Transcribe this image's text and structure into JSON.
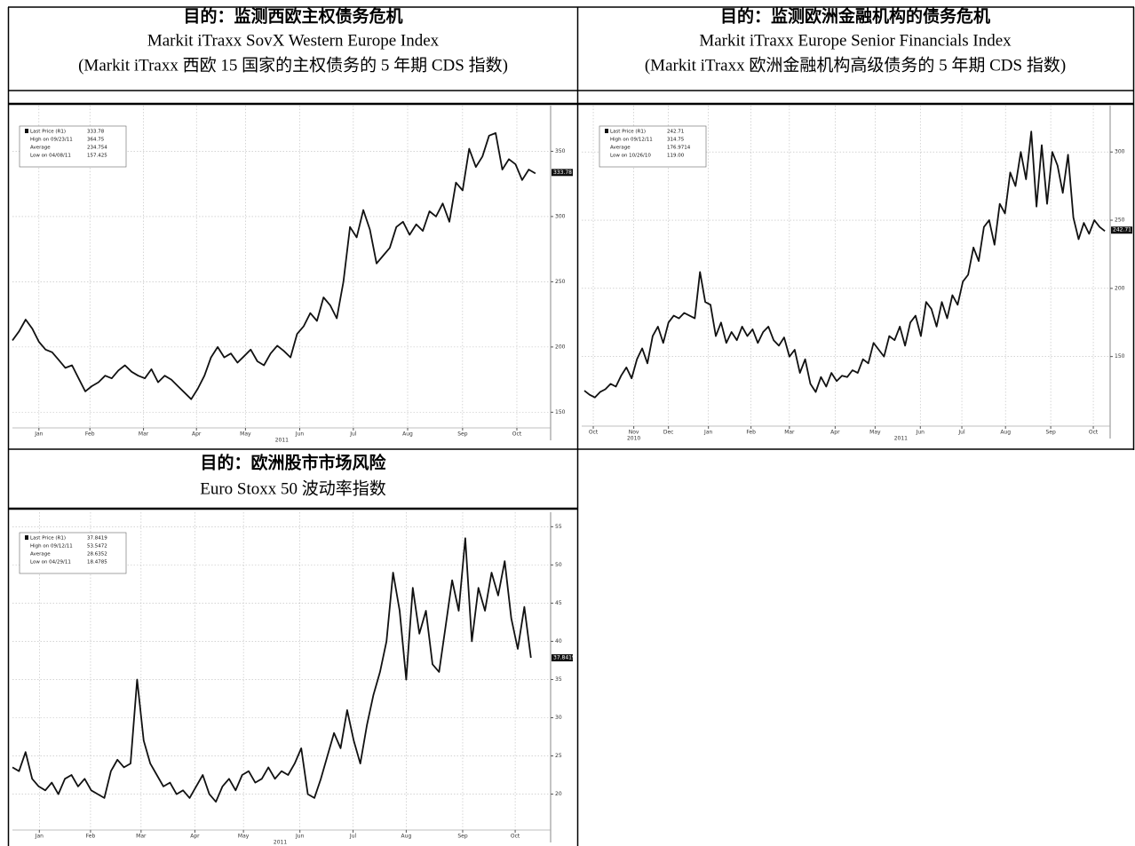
{
  "chart_data": [
    {
      "type": "line",
      "title": "目的：监测西欧主权债务危机",
      "subtitle": "Markit iTraxx SovX Western Europe Index",
      "caption": "(Markit iTraxx 西欧 15 国家的主权债务的 5 年期 CDS 指数)",
      "color": "#111111",
      "values": [
        205,
        212,
        221,
        214,
        204,
        198,
        196,
        190,
        184,
        186,
        176,
        166,
        170,
        173,
        178,
        176,
        182,
        186,
        181,
        178,
        176,
        183,
        173,
        178,
        175,
        170,
        165,
        160,
        168,
        178,
        192,
        200,
        192,
        195,
        188,
        193,
        198,
        189,
        186,
        195,
        201,
        197,
        192,
        210,
        216,
        226,
        220,
        238,
        232,
        222,
        250,
        292,
        284,
        305,
        290,
        264,
        270,
        276,
        292,
        296,
        286,
        294,
        289,
        304,
        300,
        310,
        296,
        326,
        320,
        352,
        338,
        346,
        362,
        364,
        336,
        344,
        340,
        328,
        336,
        333
      ],
      "xlim": [
        0,
        81.3
      ],
      "xticks": [
        {
          "value": 4,
          "label": "Jan"
        },
        {
          "value": 11.7,
          "label": "Feb"
        },
        {
          "value": 19.8,
          "label": "Mar"
        },
        {
          "value": 27.8,
          "label": "Apr"
        },
        {
          "value": 35.2,
          "label": "May"
        },
        {
          "value": 43.4,
          "label": "Jun"
        },
        {
          "value": 51.5,
          "label": "Jul"
        },
        {
          "value": 59.7,
          "label": "Aug"
        },
        {
          "value": 68,
          "label": "Sep"
        },
        {
          "value": 76.2,
          "label": "Oct"
        }
      ],
      "year_labels": [
        {
          "value": 40.7,
          "label": "2011"
        }
      ],
      "ylim": [
        138,
        385
      ],
      "yticks": [
        150,
        200,
        250,
        300,
        350
      ],
      "grid": true,
      "stats": [
        {
          "label": "Last Price (R1)",
          "value": 333.78
        },
        {
          "label": "High on 09/23/11",
          "value": 364.75
        },
        {
          "label": "Average",
          "value": 234.754
        },
        {
          "label": "Low on 04/08/11",
          "value": 157.425
        }
      ]
    },
    {
      "type": "line",
      "title": "目的：监测欧洲金融机构的债务危机",
      "subtitle": "Markit iTraxx Europe Senior Financials Index",
      "caption": "(Markit iTraxx 欧洲金融机构高级债务的 5 年期 CDS 指数)",
      "color": "#111111",
      "values": [
        125,
        122,
        120,
        124,
        126,
        130,
        128,
        136,
        142,
        134,
        148,
        156,
        145,
        165,
        172,
        160,
        175,
        180,
        178,
        182,
        180,
        178,
        212,
        190,
        188,
        165,
        175,
        160,
        168,
        162,
        172,
        165,
        170,
        160,
        168,
        172,
        162,
        158,
        164,
        150,
        155,
        138,
        148,
        130,
        124,
        135,
        128,
        138,
        132,
        136,
        135,
        140,
        138,
        148,
        145,
        160,
        155,
        150,
        165,
        162,
        172,
        158,
        175,
        180,
        165,
        190,
        185,
        172,
        190,
        178,
        195,
        188,
        205,
        210,
        230,
        220,
        245,
        250,
        232,
        262,
        255,
        285,
        275,
        300,
        280,
        315,
        260,
        305,
        262,
        300,
        290,
        270,
        298,
        252,
        236,
        248,
        240,
        250,
        245,
        242
      ],
      "xlim": [
        -0.5,
        100
      ],
      "xticks": [
        {
          "value": 1.7,
          "label": "Oct"
        },
        {
          "value": 9.4,
          "label": "Nov"
        },
        {
          "value": 16,
          "label": "Dec"
        },
        {
          "value": 23.6,
          "label": "Jan"
        },
        {
          "value": 31.7,
          "label": "Feb"
        },
        {
          "value": 39,
          "label": "Mar"
        },
        {
          "value": 47.7,
          "label": "Apr"
        },
        {
          "value": 55.3,
          "label": "May"
        },
        {
          "value": 63.9,
          "label": "Jun"
        },
        {
          "value": 71.8,
          "label": "Jul"
        },
        {
          "value": 80.1,
          "label": "Aug"
        },
        {
          "value": 88.7,
          "label": "Sep"
        },
        {
          "value": 96.8,
          "label": "Oct"
        }
      ],
      "year_labels": [
        {
          "value": 9.4,
          "label": "2010"
        },
        {
          "value": 60.2,
          "label": "2011"
        }
      ],
      "ylim": [
        99,
        334
      ],
      "yticks": [
        150,
        200,
        250,
        300
      ],
      "grid": true,
      "stats": [
        {
          "label": "Last Price (R1)",
          "value": 242.71
        },
        {
          "label": "High on 09/12/11",
          "value": 314.75
        },
        {
          "label": "Average",
          "value": 176.9714
        },
        {
          "label": "Low on 10/26/10",
          "value": {
            "value": 119,
            "label": "119.00"
          }
        }
      ]
    },
    {
      "type": "line",
      "title": "目的：欧洲股市市场风险",
      "subtitle": "Euro Stoxx 50 波动率指数",
      "color": "#111111",
      "values": [
        23.5,
        23,
        25.5,
        22,
        21,
        20.5,
        21.5,
        20,
        22,
        22.5,
        21,
        22,
        20.5,
        20,
        19.5,
        23,
        24.5,
        23.5,
        24,
        35,
        27,
        24,
        22.5,
        21,
        21.5,
        20,
        20.5,
        19.5,
        21,
        22.5,
        20,
        19,
        21,
        22,
        20.5,
        22.5,
        23,
        21.5,
        22,
        23.5,
        22,
        23,
        22.5,
        24,
        26,
        20,
        19.5,
        22,
        25,
        28,
        26,
        31,
        27,
        24,
        29,
        33,
        36,
        40,
        49,
        44,
        35,
        47,
        41,
        44,
        37,
        36,
        42,
        48,
        44,
        53.5,
        40,
        47,
        44,
        49,
        46,
        50.5,
        43,
        39,
        44.5,
        37.84
      ],
      "xlim": [
        0,
        82
      ],
      "xticks": [
        {
          "value": 4.1,
          "label": "Jan"
        },
        {
          "value": 11.9,
          "label": "Feb"
        },
        {
          "value": 19.6,
          "label": "Mar"
        },
        {
          "value": 27.8,
          "label": "Apr"
        },
        {
          "value": 35.2,
          "label": "May"
        },
        {
          "value": 43.8,
          "label": "Jun"
        },
        {
          "value": 51.9,
          "label": "Jul"
        },
        {
          "value": 60,
          "label": "Aug"
        },
        {
          "value": 68.6,
          "label": "Sep"
        },
        {
          "value": 76.6,
          "label": "Oct"
        }
      ],
      "year_labels": [
        {
          "value": 40.8,
          "label": "2011"
        }
      ],
      "ylim": [
        15.3,
        56.9
      ],
      "yticks": [
        20,
        25,
        30,
        35,
        40,
        45,
        50,
        55
      ],
      "grid": true,
      "stats": [
        {
          "label": "Last Price (R1)",
          "value": 37.8419
        },
        {
          "label": "High on 09/12/11",
          "value": 53.5472
        },
        {
          "label": "Average",
          "value": 28.6352
        },
        {
          "label": "Low on 04/29/11",
          "value": 18.4785
        }
      ]
    }
  ]
}
